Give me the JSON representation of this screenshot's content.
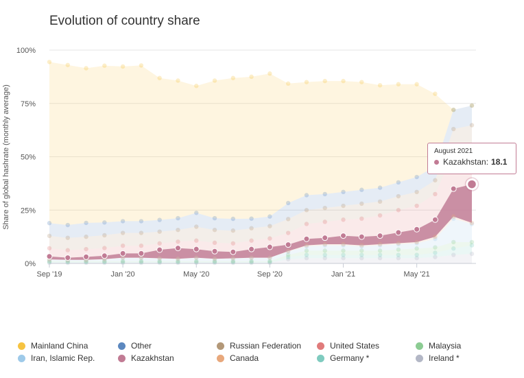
{
  "chart_data": {
    "type": "area",
    "title": "Evolution of country share",
    "ylabel": "Share of global hashrate (monthly average)",
    "xlabel": "",
    "ylim": [
      0,
      100
    ],
    "y_ticks": [
      "0%",
      "25%",
      "50%",
      "75%",
      "100%"
    ],
    "x": [
      "Sep '19",
      "Oct '19",
      "Nov '19",
      "Dec '19",
      "Jan '20",
      "Feb '20",
      "Mar '20",
      "Apr '20",
      "May '20",
      "Jun '20",
      "Jul '20",
      "Aug '20",
      "Sep '20",
      "Oct '20",
      "Nov '20",
      "Dec '20",
      "Jan '21",
      "Feb '21",
      "Mar '21",
      "Apr '21",
      "May '21",
      "Jun '21",
      "Jul '21",
      "Aug '21"
    ],
    "x_tick_labels": [
      {
        "label": "Sep '19",
        "index": 0
      },
      {
        "label": "Jan '20",
        "index": 4
      },
      {
        "label": "May '20",
        "index": 8
      },
      {
        "label": "Sep '20",
        "index": 12
      },
      {
        "label": "Jan '21",
        "index": 16
      },
      {
        "label": "May '21",
        "index": 20
      }
    ],
    "stack_order_bottom_to_top": "Ireland *, Germany *, Malaysia, Iran, Islamic Rep., Canada, Kazakhstan, United States, Russian Federation, Other, Mainland China",
    "series": [
      {
        "name": "Ireland *",
        "color": "#b3b7c6",
        "values": [
          0.3,
          0.3,
          0.3,
          0.3,
          0.3,
          0.3,
          0.3,
          0.3,
          0.3,
          0.3,
          0.3,
          0.3,
          0.3,
          2.0,
          2.5,
          2.5,
          2.5,
          2.5,
          2.5,
          2.5,
          2.5,
          3.0,
          4.0,
          4.5
        ]
      },
      {
        "name": "Germany *",
        "color": "#7fcbbf",
        "values": [
          0.4,
          0.4,
          0.4,
          0.4,
          0.4,
          0.4,
          0.4,
          0.4,
          0.4,
          0.4,
          0.4,
          0.4,
          0.4,
          1.0,
          1.5,
          1.5,
          1.5,
          1.5,
          1.5,
          1.5,
          1.5,
          2.0,
          3.0,
          4.0
        ]
      },
      {
        "name": "Malaysia",
        "color": "#8ccc93",
        "values": [
          0.4,
          0.4,
          0.4,
          0.4,
          0.4,
          0.4,
          0.4,
          0.4,
          0.4,
          0.4,
          0.4,
          0.4,
          0.4,
          1.0,
          2.0,
          2.0,
          2.0,
          2.0,
          2.0,
          2.5,
          3.0,
          2.5,
          3.0,
          1.5
        ]
      },
      {
        "name": "Iran, Islamic Rep.",
        "color": "#9ecae9",
        "values": [
          0.7,
          0.5,
          0.5,
          0.8,
          1.5,
          1.5,
          1.2,
          1.0,
          1.5,
          1.0,
          1.2,
          1.5,
          1.5,
          1.5,
          2.0,
          2.5,
          2.5,
          2.0,
          2.5,
          2.5,
          2.5,
          4.0,
          11.0,
          8.5
        ]
      },
      {
        "name": "Canada",
        "color": "#e8a87c",
        "values": [
          0.1,
          0.1,
          0.1,
          0.1,
          0.1,
          0.1,
          0.1,
          0.1,
          0.1,
          0.1,
          0.1,
          0.1,
          0.1,
          0.3,
          0.5,
          0.5,
          0.5,
          0.5,
          0.5,
          0.5,
          0.5,
          1.0,
          1.0,
          0.5
        ]
      },
      {
        "name": "Kazakhstan",
        "color": "#c17b94",
        "values": [
          1.4,
          1.0,
          1.4,
          1.6,
          2.0,
          2.0,
          4.0,
          5.0,
          4.0,
          3.5,
          3.0,
          4.0,
          5.0,
          3.0,
          3.0,
          3.0,
          4.0,
          4.0,
          4.0,
          5.0,
          6.0,
          8.0,
          13.0,
          18.1
        ]
      },
      {
        "name": "United States",
        "color": "#e07b7b",
        "values": [
          3.8,
          3.5,
          3.6,
          3.6,
          3.6,
          3.6,
          3.0,
          3.0,
          4.0,
          4.0,
          4.0,
          4.0,
          4.0,
          5.5,
          7.0,
          7.5,
          7.5,
          8.5,
          9.5,
          10.5,
          11.0,
          12.0,
          17.0,
          16.6
        ]
      },
      {
        "name": "Russian Federation",
        "color": "#b39878",
        "values": [
          5.8,
          5.8,
          5.8,
          6.0,
          6.0,
          6.0,
          5.5,
          5.5,
          6.5,
          6.0,
          6.0,
          5.8,
          5.8,
          6.5,
          6.5,
          6.5,
          6.5,
          7.0,
          6.5,
          6.5,
          6.5,
          6.5,
          11.0,
          11.1
        ]
      },
      {
        "name": "Other",
        "color": "#5c88bf",
        "values": [
          6.0,
          6.0,
          6.5,
          6.0,
          5.5,
          5.5,
          5.5,
          5.5,
          6.5,
          5.5,
          5.5,
          4.5,
          4.5,
          7.5,
          7.0,
          6.5,
          6.5,
          6.5,
          6.5,
          6.5,
          7.0,
          6.5,
          9.0,
          9.2
        ]
      },
      {
        "name": "Mainland China",
        "color": "#f6c341",
        "values": [
          75.5,
          75.0,
          72.5,
          73.5,
          72.5,
          73.0,
          66.5,
          64.5,
          59.5,
          64.5,
          66.0,
          66.5,
          67.0,
          56.0,
          53.0,
          53.0,
          52.0,
          50.5,
          48.0,
          46.0,
          43.5,
          34.0,
          0,
          0
        ]
      }
    ],
    "grid": "horizontal",
    "legend_placement": "bottom",
    "tooltip": {
      "period": "August 2021",
      "series": "Kazakhstan",
      "label": "Kazakhstan:",
      "value": "18.1"
    }
  }
}
